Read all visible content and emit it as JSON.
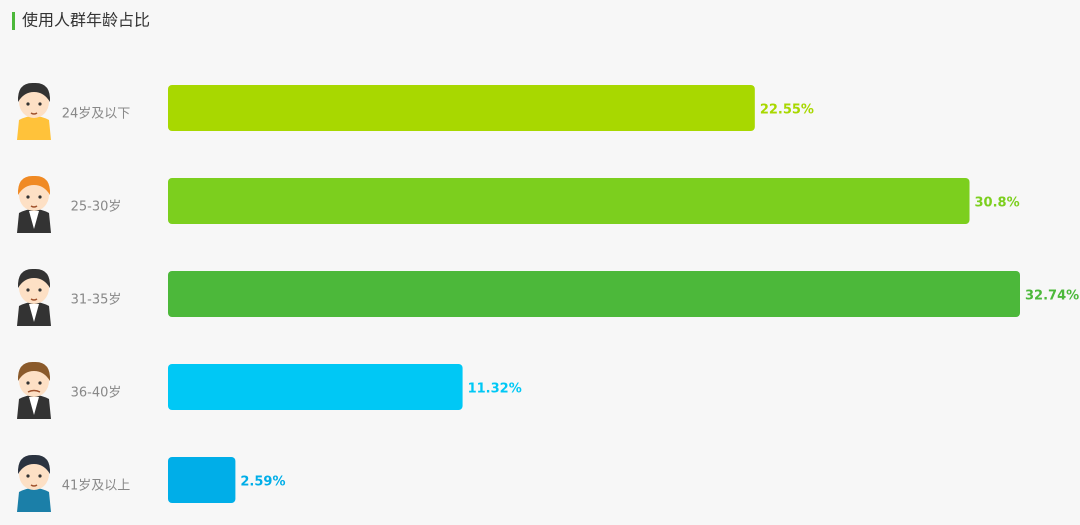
{
  "chart_data": {
    "type": "bar",
    "orientation": "horizontal",
    "title": "使用人群年龄占比",
    "categories": [
      "24岁及以下",
      "25-30岁",
      "31-35岁",
      "36-40岁",
      "41岁及以上"
    ],
    "values": [
      22.55,
      30.8,
      32.74,
      11.32,
      2.59
    ],
    "value_labels": [
      "22.55%",
      "30.8%",
      "32.74%",
      "11.32%",
      "2.59%"
    ],
    "colors": [
      "#a8d800",
      "#7ccf1e",
      "#4cb83a",
      "#00c8f5",
      "#00aee8"
    ]
  }
}
